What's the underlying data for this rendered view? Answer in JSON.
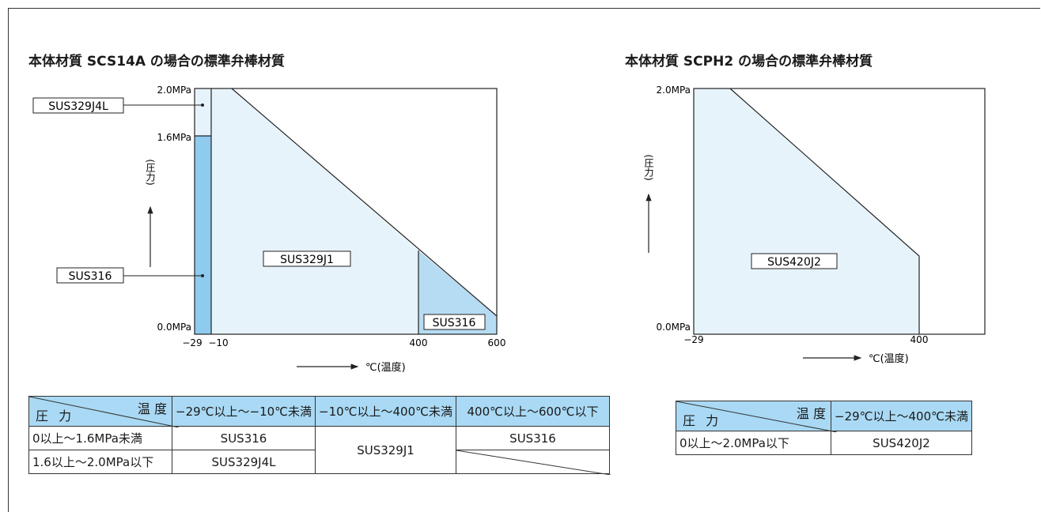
{
  "colors": {
    "light_blue": "#e6f3fb",
    "mid_blue": "#b6dcf3",
    "dark_blue": "#8ecbee",
    "header_blue": "#a9d9f4",
    "line": "#222222"
  },
  "left": {
    "title": "本体材質 SCS14A の場合の標準弁棒材質",
    "axis": {
      "y_ticks": [
        "2.0MPa",
        "1.6MPa",
        "0.0MPa"
      ],
      "x_ticks": [
        "−29",
        "−10",
        "400",
        "600"
      ],
      "y_label": "(圧力)",
      "x_label": "℃(温度)"
    },
    "region_labels": {
      "sus329j4l": "SUS329J4L",
      "sus316_low": "SUS316",
      "sus329j1": "SUS329J1",
      "sus316_high": "SUS316"
    },
    "table": {
      "corner_temp": "温 度",
      "corner_pressure": "圧 力",
      "headers": [
        "−29℃以上〜−10℃未満",
        "−10℃以上〜400℃未満",
        "400℃以上〜600℃以下"
      ],
      "rows": [
        {
          "label": "0以上〜1.6MPa未満",
          "c1": "SUS316",
          "c3": "SUS316"
        },
        {
          "label": "1.6以上〜2.0MPa以下",
          "c1": "SUS329J4L"
        }
      ],
      "merged_c2": "SUS329J1"
    }
  },
  "right": {
    "title": "本体材質 SCPH2 の場合の標準弁棒材質",
    "axis": {
      "y_ticks": [
        "2.0MPa",
        "0.0MPa"
      ],
      "x_ticks": [
        "−29",
        "400"
      ],
      "y_label": "(圧力)",
      "x_label": "℃(温度)"
    },
    "region_labels": {
      "sus420j2": "SUS420J2"
    },
    "table": {
      "corner_temp": "温 度",
      "corner_pressure": "圧 力",
      "headers": [
        "−29℃以上〜400℃未満"
      ],
      "rows": [
        {
          "label": "0以上〜2.0MPa以下",
          "c1": "SUS420J2"
        }
      ]
    }
  }
}
